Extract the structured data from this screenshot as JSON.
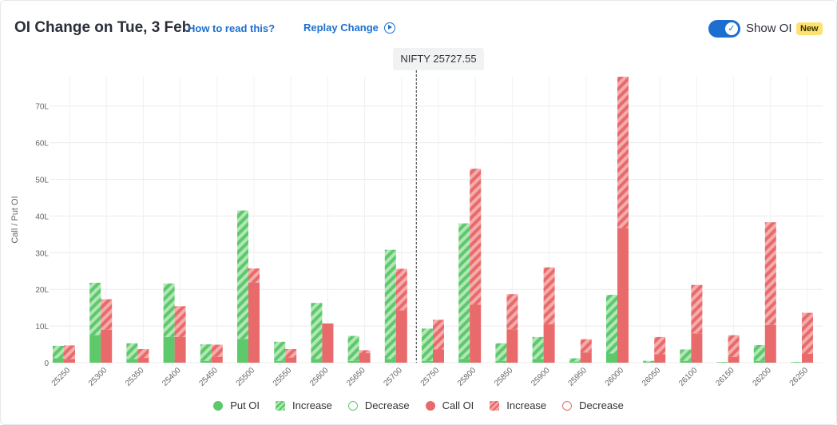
{
  "header": {
    "title": "OI Change on Tue, 3 Feb",
    "how_to_read": "How to read this?",
    "replay": "Replay Change",
    "show_oi_label": "Show OI",
    "new_badge": "New",
    "show_oi_on": true
  },
  "spot_label": "NIFTY 25727.55",
  "colors": {
    "put": "#5dc96a",
    "put_light": "#b2e6b8",
    "call": "#e96a6a",
    "call_light": "#f4acac",
    "spot_line": "#333333"
  },
  "legend": [
    {
      "label": "Put OI",
      "style": "put-solid"
    },
    {
      "label": "Increase",
      "style": "put-hatch"
    },
    {
      "label": "Decrease",
      "style": "put-outline"
    },
    {
      "label": "Call OI",
      "style": "call-solid"
    },
    {
      "label": "Increase",
      "style": "call-hatch"
    },
    {
      "label": "Decrease",
      "style": "call-outline"
    }
  ],
  "chart_data": {
    "type": "bar",
    "ylabel": "Call / Put OI",
    "ylim": [
      0,
      78
    ],
    "yticks": [
      0,
      10,
      20,
      30,
      40,
      50,
      60,
      70
    ],
    "ytick_labels": [
      "0",
      "10L",
      "20L",
      "30L",
      "40L",
      "50L",
      "60L",
      "70L"
    ],
    "spot": 25727.55,
    "categories": [
      "25250",
      "25300",
      "25350",
      "25400",
      "25450",
      "25500",
      "25550",
      "25600",
      "25650",
      "25700",
      "25750",
      "25800",
      "25850",
      "25900",
      "25950",
      "26000",
      "26050",
      "26100",
      "26150",
      "26200",
      "26250"
    ],
    "series": [
      {
        "name": "Put OI",
        "values": [
          1.2,
          7.5,
          1.0,
          7.0,
          0.5,
          6.5,
          0.5,
          1.0,
          0.5,
          1.0,
          0.5,
          1.0,
          0.5,
          1.0,
          0.3,
          2.5,
          0.2,
          0.5,
          0.1,
          0.5,
          0.1
        ]
      },
      {
        "name": "Put OI Change",
        "values": [
          3.4,
          14.3,
          4.3,
          14.6,
          4.5,
          35.0,
          5.2,
          15.3,
          6.8,
          29.8,
          8.8,
          37.0,
          4.8,
          6.0,
          0.9,
          16.0,
          0.3,
          3.1,
          0.1,
          4.3,
          0.1
        ]
      },
      {
        "name": "Call OI",
        "values": [
          1.0,
          9.0,
          1.3,
          7.0,
          1.6,
          21.8,
          1.4,
          10.5,
          2.6,
          14.3,
          3.6,
          15.8,
          9.1,
          10.5,
          2.8,
          36.7,
          2.3,
          8.0,
          1.6,
          10.3,
          2.4
        ]
      },
      {
        "name": "Call OI Change",
        "values": [
          3.7,
          8.3,
          2.4,
          8.4,
          3.3,
          3.9,
          2.3,
          -0.2,
          0.8,
          11.3,
          8.1,
          37.1,
          9.6,
          15.5,
          3.6,
          41.3,
          4.7,
          13.2,
          5.9,
          28.0,
          11.2
        ]
      }
    ],
    "grid": true
  }
}
